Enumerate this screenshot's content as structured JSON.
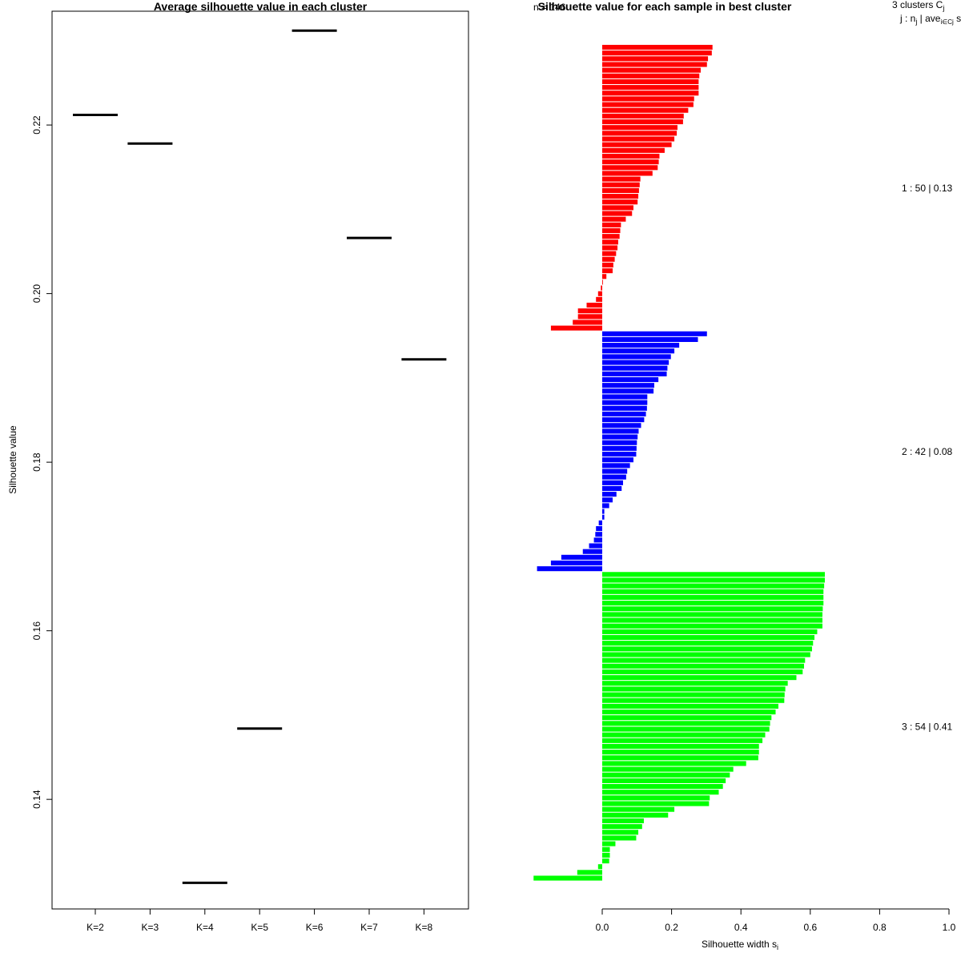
{
  "colors": {
    "cluster1": "#ff0000",
    "cluster2": "#0000ff",
    "cluster3": "#00ff00",
    "avg_line": "#000000"
  },
  "chart_data": [
    {
      "type": "dot",
      "title": "Average silhouette value in each cluster",
      "xlabel": "",
      "ylabel": "Silhouette value",
      "categories": [
        "K=2",
        "K=3",
        "K=4",
        "K=5",
        "K=6",
        "K=7",
        "K=8"
      ],
      "values": [
        0.2212,
        0.2178,
        0.1301,
        0.1484,
        0.2312,
        0.2066,
        0.1922
      ],
      "ylim": [
        0.127,
        0.2335
      ],
      "yticks": [
        "0.14",
        "0.16",
        "0.18",
        "0.20",
        "0.22"
      ]
    },
    {
      "type": "bar",
      "orientation": "horizontal",
      "title": "Silhouette value for each sample in best cluster",
      "subtitle": "n = 146",
      "xlabel": "Silhouette width s",
      "xlabel_sub": "i",
      "xlim": [
        0,
        1
      ],
      "xticks": [
        "0.0",
        "0.2",
        "0.4",
        "0.6",
        "0.8",
        "1.0"
      ],
      "legend_header": {
        "line1": "3  clusters  C",
        "line1_sub": "j",
        "line2": "j :  n",
        "line2_sub": "j",
        "line2_mid": " | ave",
        "line2_sub2": "i∈Cj",
        "line2_end": "  s"
      },
      "clusters": [
        {
          "label": "1 :   50  |  0.13",
          "color_key": "cluster1",
          "values": [
            0.318,
            0.316,
            0.305,
            0.302,
            0.284,
            0.28,
            0.278,
            0.278,
            0.278,
            0.265,
            0.263,
            0.248,
            0.235,
            0.233,
            0.217,
            0.215,
            0.208,
            0.2,
            0.18,
            0.165,
            0.163,
            0.16,
            0.145,
            0.11,
            0.108,
            0.106,
            0.104,
            0.102,
            0.09,
            0.086,
            0.068,
            0.054,
            0.052,
            0.05,
            0.046,
            0.044,
            0.04,
            0.036,
            0.032,
            0.03,
            0.012,
            0.002,
            -0.004,
            -0.012,
            -0.018,
            -0.045,
            -0.07,
            -0.07,
            -0.085,
            -0.148
          ]
        },
        {
          "label": "2 :   42  |  0.08",
          "color_key": "cluster2",
          "values": [
            0.302,
            0.276,
            0.222,
            0.208,
            0.198,
            0.192,
            0.188,
            0.186,
            0.162,
            0.15,
            0.148,
            0.13,
            0.13,
            0.129,
            0.126,
            0.121,
            0.112,
            0.105,
            0.102,
            0.1,
            0.099,
            0.098,
            0.09,
            0.08,
            0.072,
            0.069,
            0.06,
            0.056,
            0.041,
            0.03,
            0.02,
            0.006,
            0.006,
            -0.01,
            -0.018,
            -0.02,
            -0.024,
            -0.038,
            -0.056,
            -0.118,
            -0.148,
            -0.188
          ]
        },
        {
          "label": "3 :   54  |  0.41",
          "color_key": "cluster3",
          "values": [
            0.642,
            0.642,
            0.64,
            0.638,
            0.638,
            0.638,
            0.636,
            0.635,
            0.635,
            0.635,
            0.62,
            0.612,
            0.608,
            0.605,
            0.6,
            0.585,
            0.582,
            0.578,
            0.56,
            0.535,
            0.528,
            0.526,
            0.525,
            0.508,
            0.5,
            0.488,
            0.484,
            0.482,
            0.47,
            0.462,
            0.452,
            0.452,
            0.45,
            0.415,
            0.378,
            0.368,
            0.356,
            0.348,
            0.336,
            0.31,
            0.308,
            0.208,
            0.19,
            0.12,
            0.115,
            0.104,
            0.098,
            0.038,
            0.022,
            0.022,
            0.02,
            -0.012,
            -0.072,
            -0.198
          ]
        }
      ]
    }
  ]
}
